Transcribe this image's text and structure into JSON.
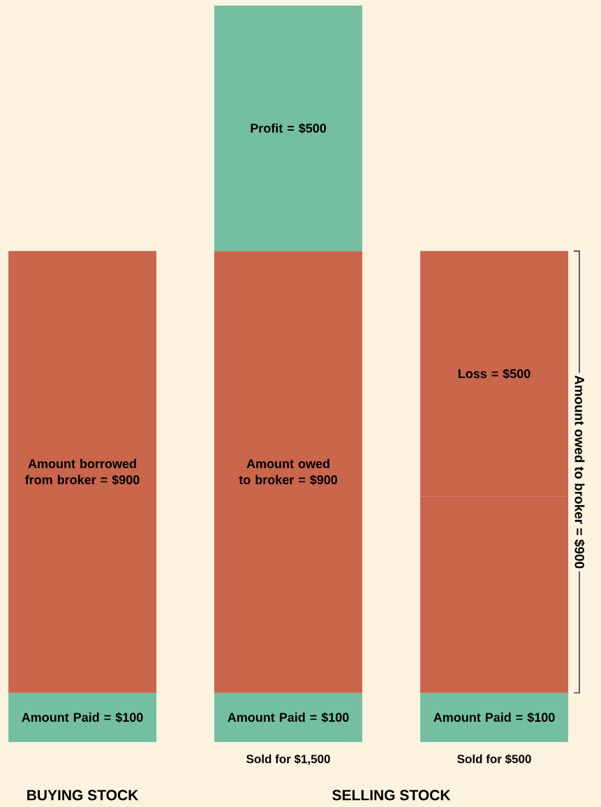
{
  "chart_data": {
    "type": "bar",
    "stacked": true,
    "categories": [
      null,
      "Sold for $1,500",
      "Sold for $500"
    ],
    "series": [
      {
        "color": "#74bfa1",
        "values": [
          100,
          100,
          100
        ],
        "value_labels": [
          "Amount Paid = $100",
          "Amount Paid = $100",
          "Amount Paid = $100"
        ]
      },
      {
        "color": "#c9664b",
        "values": [
          900,
          900,
          400
        ],
        "value_labels": [
          "Amount borrowed from broker = $900",
          "Amount owed to broker = $900",
          null
        ]
      },
      {
        "color": "#74bfa1",
        "values": [
          null,
          500,
          null
        ],
        "value_labels": [
          null,
          "Profit = $500",
          null
        ]
      },
      {
        "color": "#c9664b",
        "values": [
          null,
          null,
          500
        ],
        "value_labels": [
          null,
          null,
          "Loss = $500"
        ]
      }
    ],
    "tick_labels": "x",
    "annotations": [
      "BUYING STOCK",
      "SELLING STOCK",
      "Amount owed to broker = $900"
    ]
  }
}
